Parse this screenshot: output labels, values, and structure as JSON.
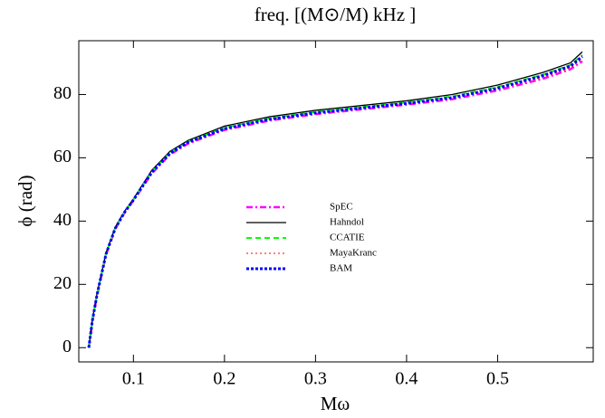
{
  "chart_data": {
    "type": "line",
    "title": "freq. [(M⊙/M) kHz ]",
    "xlabel": "Mω",
    "ylabel": "ϕ (rad)",
    "x": [
      0.051,
      0.055,
      0.06,
      0.07,
      0.08,
      0.09,
      0.1,
      0.12,
      0.14,
      0.16,
      0.2,
      0.25,
      0.3,
      0.35,
      0.4,
      0.45,
      0.5,
      0.55,
      0.58,
      0.593
    ],
    "series": [
      {
        "name": "SpEC",
        "color": "#ff00ff",
        "linestyle": "dashdot",
        "values": [
          0,
          8.5,
          16.5,
          29.5,
          37.5,
          42.5,
          46.5,
          55,
          61,
          64.5,
          68.8,
          71.8,
          73.8,
          75.3,
          76.8,
          78.5,
          81.3,
          85,
          88,
          90.5
        ]
      },
      {
        "name": "Hahndol",
        "color": "#000000",
        "linestyle": "solid",
        "values": [
          0,
          9,
          17,
          30,
          38,
          43,
          47,
          56,
          62,
          65.5,
          70,
          73,
          75,
          76.5,
          78,
          80,
          83,
          87,
          90,
          93.5
        ]
      },
      {
        "name": "CCATIE",
        "color": "#00ff00",
        "linestyle": "dashed",
        "values": [
          0,
          8.8,
          16.8,
          29.8,
          37.8,
          42.8,
          46.8,
          55.6,
          61.6,
          65.1,
          69.5,
          72.5,
          74.5,
          76,
          77.5,
          79.4,
          82.4,
          86.3,
          89.3,
          92.5
        ]
      },
      {
        "name": "MayaKranc",
        "color": "#ff0000",
        "linestyle": "dotted",
        "values": [
          0,
          8.6,
          16.6,
          29.6,
          37.6,
          42.6,
          46.6,
          55.2,
          61.2,
          64.7,
          69,
          72,
          74,
          75.5,
          77,
          78.8,
          81.6,
          85.4,
          88.5,
          91.2
        ]
      },
      {
        "name": "BAM",
        "color": "#0000ff",
        "linestyle": "bold-dotted",
        "values": [
          0,
          8.7,
          16.7,
          29.7,
          37.7,
          42.7,
          46.7,
          55.4,
          61.4,
          64.9,
          69.2,
          72.2,
          74.2,
          75.7,
          77.2,
          79,
          82,
          86,
          89,
          92
        ]
      }
    ],
    "xlim": [
      0.04,
      0.605
    ],
    "ylim": [
      -4.5,
      97
    ],
    "xticks": [
      0.1,
      0.2,
      0.3,
      0.4,
      0.5
    ],
    "yticks": [
      0,
      20,
      40,
      60,
      80
    ],
    "legend": "center"
  }
}
